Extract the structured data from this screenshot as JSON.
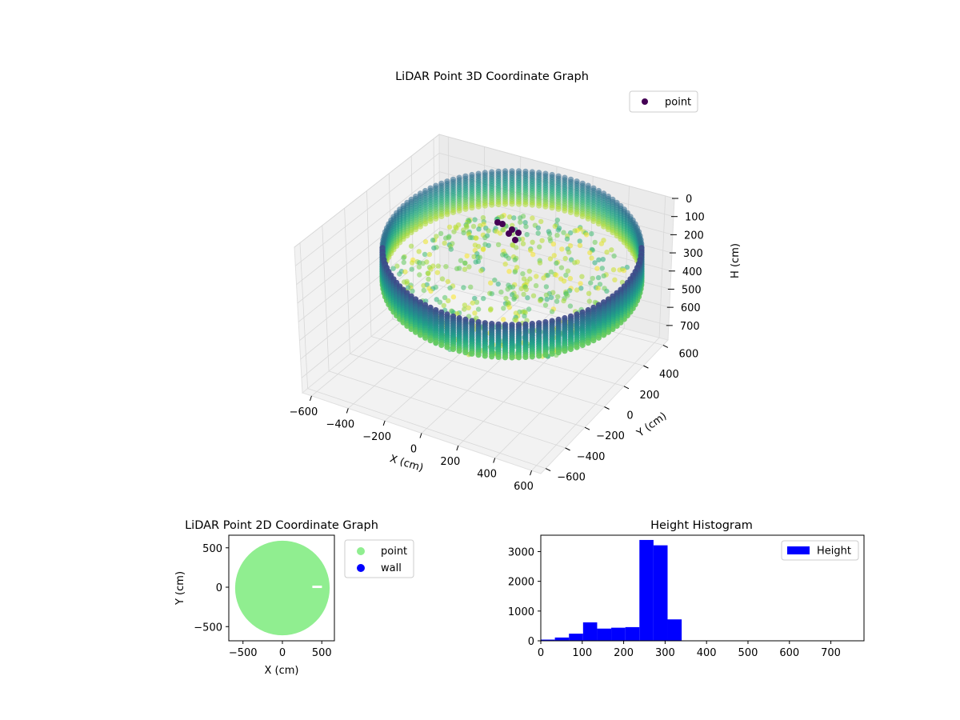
{
  "chart_data": [
    {
      "type": "scatter",
      "title": "LiDAR Point 3D Coordinate Graph",
      "xlabel": "X (cm)",
      "ylabel": "Y (cm)",
      "zlabel": "H (cm)",
      "x_ticks": [
        "−600",
        "−400",
        "−200",
        "0",
        "200",
        "400",
        "600"
      ],
      "y_ticks": [
        "−600",
        "−400",
        "−200",
        "0",
        "200",
        "400",
        "600"
      ],
      "z_ticks": [
        "0",
        "100",
        "200",
        "300",
        "400",
        "500",
        "600",
        "700"
      ],
      "xlim": [
        -650,
        650
      ],
      "ylim": [
        -650,
        650
      ],
      "zlim": [
        0,
        780
      ],
      "z_inverted": true,
      "legend": [
        "point"
      ],
      "legend_position": "top-right",
      "colormap": "viridis",
      "point_color": "#440154",
      "series": [
        {
          "name": "point",
          "shape": "ring wall around a floor",
          "radius": 580,
          "height_range": [
            240,
            340
          ]
        }
      ]
    },
    {
      "type": "scatter",
      "title": "LiDAR Point 2D Coordinate Graph",
      "xlabel": "X (cm)",
      "ylabel": "Y (cm)",
      "x_ticks": [
        "−500",
        "0",
        "500"
      ],
      "y_ticks": [
        "500",
        "0",
        "−500"
      ],
      "xlim": [
        -680,
        660
      ],
      "ylim": [
        -680,
        660
      ],
      "legend": [
        "point",
        "wall"
      ],
      "legend_position": "outside-right",
      "series": [
        {
          "name": "point",
          "color": "#90ee90",
          "shape": "filled disk",
          "radius": 600
        },
        {
          "name": "wall",
          "color": "#0000ff"
        }
      ]
    },
    {
      "type": "bar",
      "title": "Height Histogram",
      "legend": [
        "Height"
      ],
      "legend_position": "top-right",
      "bar_color": "#0000ff",
      "x_ticks": [
        "0",
        "100",
        "200",
        "300",
        "400",
        "500",
        "600",
        "700"
      ],
      "y_ticks": [
        "0",
        "1000",
        "2000",
        "3000"
      ],
      "xlim": [
        0,
        780
      ],
      "ylim": [
        0,
        3550
      ],
      "bin_width": 34,
      "bins": [
        0,
        34,
        68,
        102,
        136,
        170,
        204,
        238,
        272,
        306
      ],
      "values": [
        40,
        110,
        240,
        620,
        410,
        440,
        460,
        3390,
        3210,
        720
      ]
    }
  ]
}
